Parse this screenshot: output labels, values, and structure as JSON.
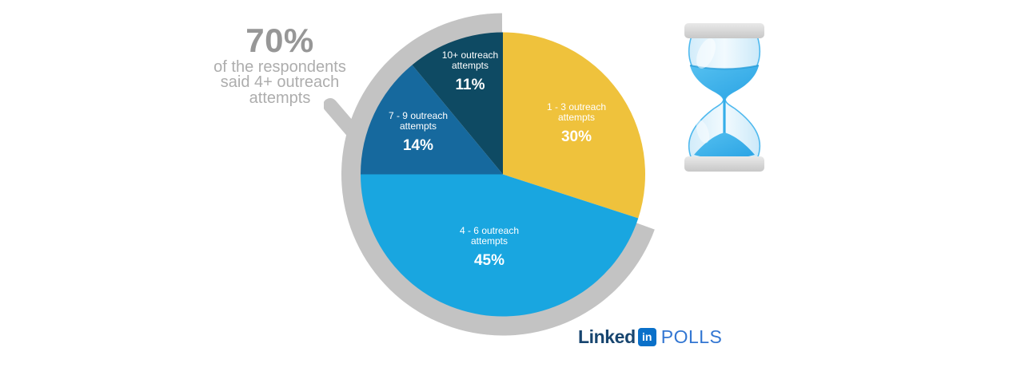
{
  "page": {
    "background": "#FFFFFF"
  },
  "headline": {
    "percent": "70%",
    "lines": [
      "of the respondents",
      "said 4+ outreach",
      "attempts"
    ],
    "percent_color": "#979797",
    "lines_color": "#ADADAD"
  },
  "chart_data": {
    "type": "pie",
    "title": "",
    "direction": "clockwise",
    "start_angle_deg": 0,
    "label_text_color": "#FFFFFF",
    "segments": [
      {
        "label": "1 - 3 outreach attempts",
        "value": 30,
        "pct_label": "30%",
        "color": "#EFC23C"
      },
      {
        "label": "4 - 6 outreach attempts",
        "value": 45,
        "pct_label": "45%",
        "color": "#19A6E0"
      },
      {
        "label": "7 - 9 outreach attempts",
        "value": 14,
        "pct_label": "14%",
        "color": "#16699E"
      },
      {
        "label": "10+ outreach attempts",
        "value": 11,
        "pct_label": "11%",
        "color": "#0E4A63"
      }
    ],
    "highlight_arc": {
      "covers_percent": 70,
      "from_segment": 1,
      "color": "#C3C3C3",
      "note": "gray arc spans the 4+, 7-9 and 10+ segments with callout tail to headline"
    }
  },
  "icons": {
    "hourglass": "hourglass-icon",
    "hourglass_sand_color": "#35AEE9",
    "hourglass_cap_color": "#D5D5D5"
  },
  "branding": {
    "linked": "Linked",
    "in_badge": "in",
    "suffix": "POLLS",
    "linked_color": "#17456F",
    "badge_color": "#0A70C9",
    "suffix_color": "#3276D2"
  }
}
